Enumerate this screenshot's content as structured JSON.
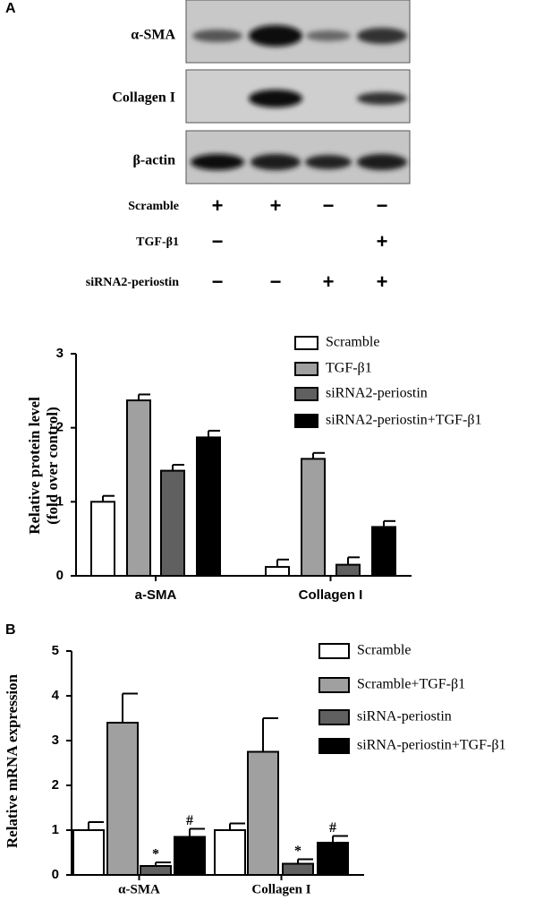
{
  "panels": [
    "A",
    "B"
  ],
  "blot": {
    "rows": [
      "α-SMA",
      "Collagen I",
      "β-actin"
    ],
    "conditions": [
      {
        "name": "Scramble",
        "signs": [
          "+",
          "+",
          "−",
          "−"
        ]
      },
      {
        "name": "TGF-β1",
        "signs": [
          "−",
          null,
          null,
          "+"
        ]
      },
      {
        "name": "siRNA2-periostin",
        "signs": [
          "−",
          "−",
          "+",
          "+"
        ]
      }
    ]
  },
  "chart_data": [
    {
      "type": "bar",
      "categories": [
        "a-SMA",
        "Collagen I"
      ],
      "ylabel": [
        "Relative protein level",
        "(fold over control)"
      ],
      "ylim": [
        0,
        3
      ],
      "yticks": [
        0,
        1,
        2,
        3
      ],
      "series": [
        {
          "name": "Scramble",
          "color": "#ffffff",
          "values": [
            1.0,
            0.12
          ],
          "errors": [
            0.08,
            0.1
          ]
        },
        {
          "name": "TGF-β1",
          "color": "#a0a0a0",
          "values": [
            2.37,
            1.58
          ],
          "errors": [
            0.08,
            0.08
          ]
        },
        {
          "name": "siRNA2-periostin",
          "color": "#606060",
          "values": [
            1.42,
            0.15
          ],
          "errors": [
            0.08,
            0.1
          ]
        },
        {
          "name": "siRNA2-periostin+TGF-β1",
          "color": "#000000",
          "values": [
            1.87,
            0.66
          ],
          "errors": [
            0.09,
            0.08
          ]
        }
      ]
    },
    {
      "type": "bar",
      "categories": [
        "α-SMA",
        "Collagen I"
      ],
      "ylabel": [
        "Relative mRNA expression"
      ],
      "ylim": [
        0,
        5
      ],
      "yticks": [
        0,
        1,
        2,
        3,
        4,
        5
      ],
      "series": [
        {
          "name": "Scramble",
          "color": "#ffffff",
          "values": [
            1.0,
            1.0
          ],
          "errors": [
            0.18,
            0.15
          ]
        },
        {
          "name": "Scramble+TGF-β1",
          "color": "#a0a0a0",
          "values": [
            3.4,
            2.75
          ],
          "errors": [
            0.65,
            0.75
          ]
        },
        {
          "name": "siRNA-periostin",
          "color": "#606060",
          "values": [
            0.2,
            0.25
          ],
          "errors": [
            0.08,
            0.1
          ],
          "annotations": [
            "*",
            "*"
          ]
        },
        {
          "name": "siRNA-periostin+TGF-β1",
          "color": "#000000",
          "values": [
            0.85,
            0.72
          ],
          "errors": [
            0.18,
            0.15
          ],
          "annotations": [
            "#",
            "#"
          ]
        }
      ]
    }
  ]
}
